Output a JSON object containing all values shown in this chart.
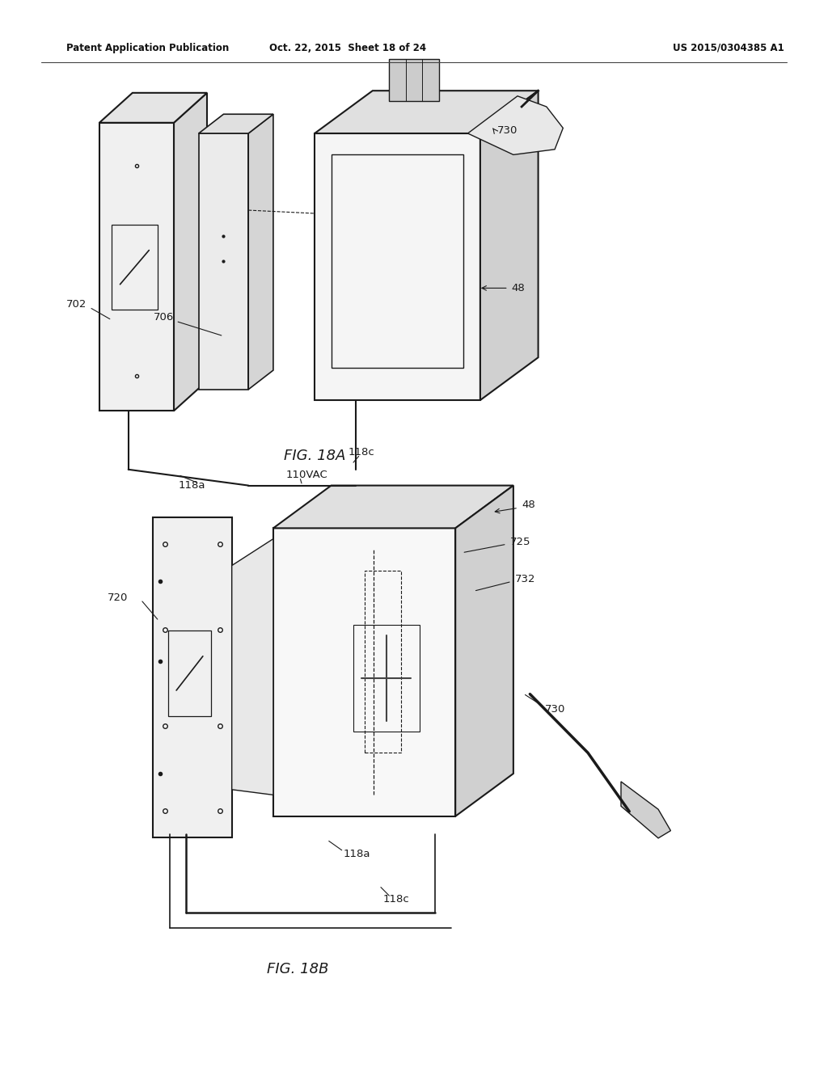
{
  "background_color": "#ffffff",
  "line_color": "#1a1a1a",
  "header_left": "Patent Application Publication",
  "header_mid": "Oct. 22, 2015  Sheet 18 of 24",
  "header_right": "US 2015/0304385 A1",
  "fig_label_A": "FIG. 18A",
  "fig_label_B": "FIG. 18B"
}
